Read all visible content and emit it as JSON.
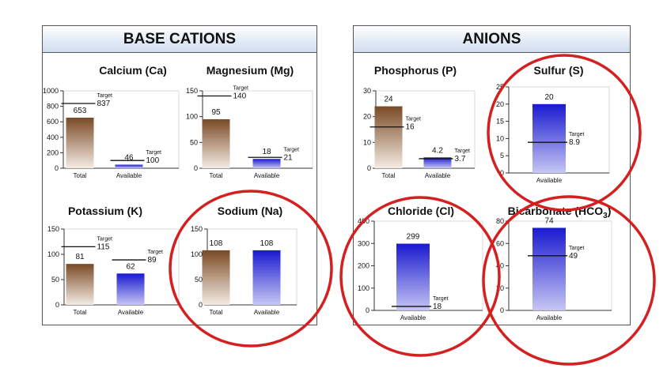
{
  "panels": {
    "base_cations": "BASE CATIONS",
    "anions": "ANIONS"
  },
  "colors": {
    "total_top": "#7a4a25",
    "total_bottom": "#f4ece4",
    "available_top": "#1a1ad0",
    "available_bottom": "#c6c6f4",
    "highlight_circle": "#d42020"
  },
  "chart_data": [
    {
      "id": "calcium",
      "type": "bar",
      "title": "Calcium (Ca)",
      "categories": [
        "Total",
        "Available"
      ],
      "values": [
        653,
        46
      ],
      "targets": [
        837,
        100
      ],
      "yticks": [
        0,
        200,
        400,
        600,
        800,
        1000
      ],
      "ylim": [
        0,
        1000
      ],
      "target_label": "Target"
    },
    {
      "id": "magnesium",
      "type": "bar",
      "title": "Magnesium (Mg)",
      "categories": [
        "Total",
        "Available"
      ],
      "values": [
        95,
        18
      ],
      "targets": [
        140,
        21
      ],
      "yticks": [
        0,
        50,
        100,
        150
      ],
      "ylim": [
        0,
        150
      ],
      "target_label": "Target"
    },
    {
      "id": "potassium",
      "type": "bar",
      "title": "Potassium (K)",
      "categories": [
        "Total",
        "Available"
      ],
      "values": [
        81,
        62
      ],
      "targets": [
        115,
        89
      ],
      "target_texts": [
        "115",
        "89"
      ],
      "yticks": [
        0,
        50,
        100,
        150
      ],
      "ylim": [
        0,
        150
      ],
      "target_label": "Target"
    },
    {
      "id": "sodium",
      "type": "bar",
      "title": "Sodium (Na)",
      "categories": [
        "Total",
        "Available"
      ],
      "values": [
        108,
        108
      ],
      "targets": [
        null,
        null
      ],
      "yticks": [
        0,
        50,
        100,
        150
      ],
      "ylim": [
        0,
        150
      ],
      "target_label": ""
    },
    {
      "id": "phosphorus",
      "type": "bar",
      "title": "Phosphorus (P)",
      "categories": [
        "Total",
        "Available"
      ],
      "values": [
        24,
        4.2
      ],
      "targets": [
        16,
        3.7
      ],
      "yticks": [
        0,
        10,
        20,
        30
      ],
      "ylim": [
        0,
        30
      ],
      "target_label": "Target"
    },
    {
      "id": "sulfur",
      "type": "bar",
      "title": "Sulfur (S)",
      "categories": [
        "Available"
      ],
      "values": [
        20
      ],
      "targets": [
        8.9
      ],
      "yticks": [
        0,
        5,
        10,
        15,
        20,
        25
      ],
      "ylim": [
        0,
        25
      ],
      "target_label": "Target"
    },
    {
      "id": "chloride",
      "type": "bar",
      "title": "Chloride (Cl)",
      "categories": [
        "Available"
      ],
      "values": [
        299
      ],
      "targets": [
        18
      ],
      "yticks": [
        0,
        100,
        200,
        300,
        400
      ],
      "ylim": [
        0,
        400
      ],
      "target_label": "Target"
    },
    {
      "id": "bicarbonate",
      "type": "bar",
      "title": "Bicarbonate (HCO",
      "title_sub": "3",
      "title_tail": ")",
      "categories": [
        "Available"
      ],
      "values": [
        74
      ],
      "targets": [
        49
      ],
      "yticks": [
        0,
        20,
        40,
        60,
        80
      ],
      "ylim": [
        0,
        80
      ],
      "target_label": "Target"
    }
  ]
}
